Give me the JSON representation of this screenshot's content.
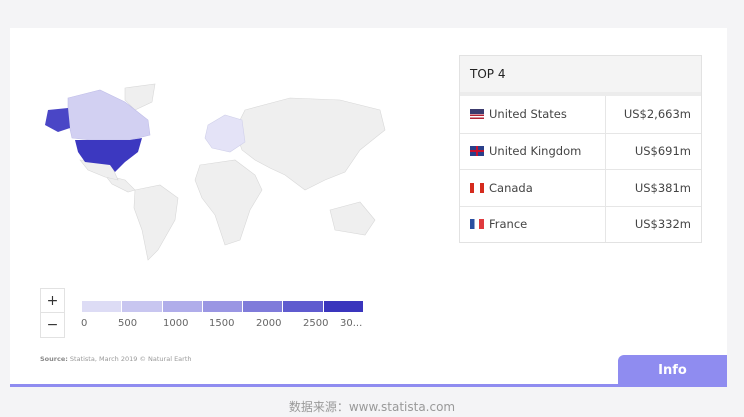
{
  "top4": {
    "title": "TOP 4",
    "rows": [
      {
        "country": "United States",
        "value": "US$2,663m",
        "flag": "us"
      },
      {
        "country": "United Kingdom",
        "value": "US$691m",
        "flag": "uk"
      },
      {
        "country": "Canada",
        "value": "US$381m",
        "flag": "ca"
      },
      {
        "country": "France",
        "value": "US$332m",
        "flag": "fr"
      }
    ]
  },
  "zoom": {
    "in": "+",
    "out": "−"
  },
  "legend": {
    "ticks": [
      "0",
      "500",
      "1000",
      "1500",
      "2000",
      "2500",
      "30..."
    ],
    "colors": [
      "#dddcf5",
      "#c8c6f0",
      "#b0adea",
      "#9a96e3",
      "#7f7bda",
      "#5f5bcf",
      "#3a35bd"
    ]
  },
  "source": {
    "label": "Source:",
    "text": " Statista, March 2019 © Natural Earth"
  },
  "info_label": "Info",
  "caption": "数据来源：www.statista.com",
  "colors": {
    "accent": "#8f8cf0",
    "us": "#3c38c0",
    "canada": "#d2d0f2"
  }
}
